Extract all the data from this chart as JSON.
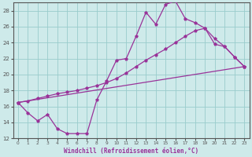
{
  "xlabel": "Windchill (Refroidissement éolien,°C)",
  "bg_color": "#ceeaea",
  "line_color": "#993399",
  "grid_color": "#99cccc",
  "axis_color": "#555555",
  "xlim": [
    -0.5,
    23.5
  ],
  "ylim": [
    12,
    29
  ],
  "xticks": [
    0,
    1,
    2,
    3,
    4,
    5,
    6,
    7,
    8,
    9,
    10,
    11,
    12,
    13,
    14,
    15,
    16,
    17,
    18,
    19,
    20,
    21,
    22,
    23
  ],
  "yticks": [
    12,
    14,
    16,
    18,
    20,
    22,
    24,
    26,
    28
  ],
  "curve1_x": [
    0,
    1,
    2,
    3,
    4,
    5,
    6,
    7,
    8,
    9,
    10,
    11,
    12,
    13,
    14,
    15,
    16,
    17,
    18,
    19,
    20,
    21,
    22,
    23
  ],
  "curve1_y": [
    16.5,
    15.2,
    14.2,
    15.0,
    13.2,
    12.6,
    12.6,
    12.6,
    16.8,
    19.2,
    21.8,
    22.0,
    24.8,
    27.8,
    26.3,
    28.8,
    29.2,
    27.0,
    26.5,
    25.8,
    23.8,
    23.5,
    22.2,
    21.0
  ],
  "curve2_x": [
    0,
    1,
    2,
    3,
    4,
    5,
    6,
    7,
    8,
    9,
    10,
    11,
    12,
    13,
    14,
    15,
    16,
    17,
    18,
    19,
    20,
    21,
    22,
    23
  ],
  "curve2_y": [
    16.5,
    16.7,
    17.0,
    17.3,
    17.6,
    17.8,
    18.0,
    18.3,
    18.6,
    19.0,
    19.5,
    20.2,
    21.0,
    21.8,
    22.5,
    23.2,
    24.0,
    24.8,
    25.5,
    25.8,
    24.5,
    23.5,
    22.2,
    21.0
  ],
  "curve3_x": [
    0,
    23
  ],
  "curve3_y": [
    16.5,
    21.0
  ]
}
